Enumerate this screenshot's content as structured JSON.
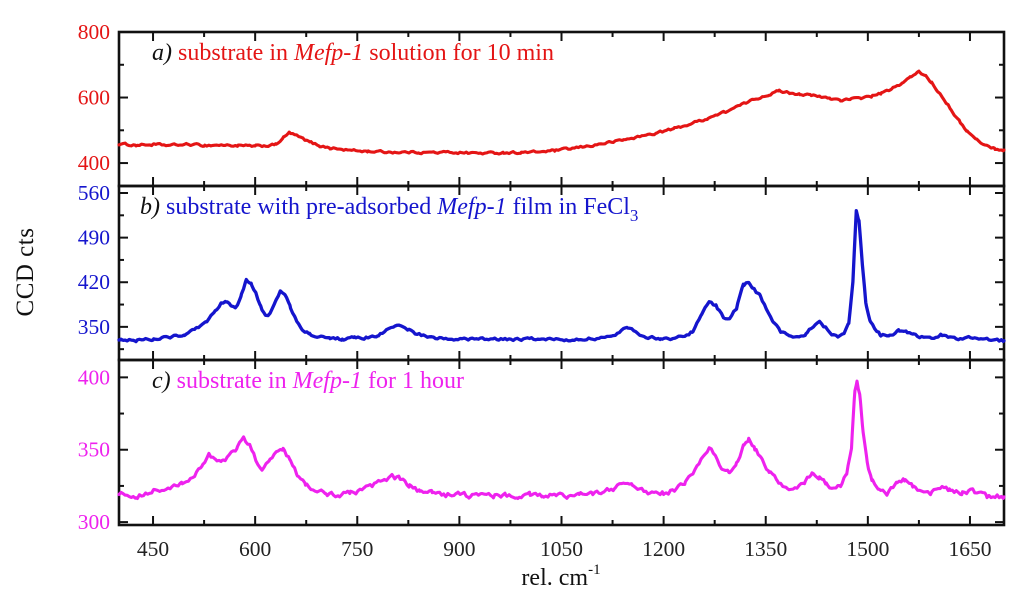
{
  "figure": {
    "ylabel": "CCD cts",
    "xlabel_main": "rel. cm",
    "xlabel_sup": "-1",
    "background_color": "#ffffff",
    "axis_color": "#111111"
  },
  "chart_data": {
    "type": "line",
    "layout": "three stacked panels sharing one x-axis, box frames with inward ticks, no grid, no legend",
    "xlabel": "rel. cm^-1",
    "ylabel": "CCD cts",
    "x_axis": {
      "range": [
        400,
        1700
      ],
      "major_ticks": [
        450,
        600,
        750,
        900,
        1050,
        1200,
        1350,
        1500,
        1650
      ],
      "minor_ticks": [
        525,
        675,
        825,
        975,
        1125,
        1275,
        1425,
        1575
      ],
      "tick_label_color": "#222222"
    },
    "panels": [
      {
        "id": "a",
        "title_text": "a) substrate in Mefp-1 solution for 10 min",
        "title_parts": [
          {
            "text": "a) ",
            "italic": true,
            "color": "#111111"
          },
          {
            "text": "substrate in ",
            "italic": false,
            "color": "#e41515"
          },
          {
            "text": "Mefp-1",
            "italic": true,
            "color": "#e41515"
          },
          {
            "text": " solution for 10 min",
            "italic": false,
            "color": "#e41515"
          }
        ],
        "color": "#e41515",
        "y_range": [
          330,
          800
        ],
        "y_major_ticks": [
          400,
          600,
          800
        ],
        "y_minor_ticks": [
          500,
          700
        ],
        "noise_amp": 3.4,
        "stroke_width": 3.1,
        "points": [
          [
            400,
            458
          ],
          [
            425,
            455
          ],
          [
            450,
            456
          ],
          [
            475,
            454
          ],
          [
            500,
            457
          ],
          [
            525,
            454
          ],
          [
            550,
            455
          ],
          [
            575,
            453
          ],
          [
            600,
            451
          ],
          [
            615,
            453
          ],
          [
            630,
            456
          ],
          [
            642,
            478
          ],
          [
            650,
            492
          ],
          [
            658,
            486
          ],
          [
            668,
            476
          ],
          [
            680,
            464
          ],
          [
            695,
            453
          ],
          [
            710,
            446
          ],
          [
            725,
            442
          ],
          [
            745,
            438
          ],
          [
            765,
            436
          ],
          [
            790,
            434
          ],
          [
            815,
            433
          ],
          [
            840,
            433
          ],
          [
            865,
            432
          ],
          [
            890,
            433
          ],
          [
            915,
            431
          ],
          [
            940,
            430
          ],
          [
            965,
            432
          ],
          [
            990,
            432
          ],
          [
            1015,
            434
          ],
          [
            1040,
            438
          ],
          [
            1065,
            444
          ],
          [
            1090,
            452
          ],
          [
            1115,
            461
          ],
          [
            1140,
            470
          ],
          [
            1165,
            481
          ],
          [
            1190,
            492
          ],
          [
            1215,
            505
          ],
          [
            1240,
            520
          ],
          [
            1265,
            537
          ],
          [
            1290,
            556
          ],
          [
            1315,
            578
          ],
          [
            1335,
            596
          ],
          [
            1355,
            610
          ],
          [
            1370,
            620
          ],
          [
            1385,
            615
          ],
          [
            1400,
            611
          ],
          [
            1415,
            607
          ],
          [
            1430,
            602
          ],
          [
            1445,
            597
          ],
          [
            1460,
            593
          ],
          [
            1475,
            594
          ],
          [
            1490,
            599
          ],
          [
            1505,
            604
          ],
          [
            1520,
            613
          ],
          [
            1535,
            625
          ],
          [
            1550,
            644
          ],
          [
            1562,
            661
          ],
          [
            1575,
            678
          ],
          [
            1584,
            668
          ],
          [
            1593,
            648
          ],
          [
            1602,
            622
          ],
          [
            1612,
            596
          ],
          [
            1622,
            565
          ],
          [
            1634,
            528
          ],
          [
            1646,
            498
          ],
          [
            1658,
            473
          ],
          [
            1672,
            455
          ],
          [
            1686,
            444
          ],
          [
            1700,
            440
          ]
        ]
      },
      {
        "id": "b",
        "title_text": "b) substrate with pre-adsorbed Mefp-1 film in FeCl3",
        "title_parts": [
          {
            "text": "b) ",
            "italic": true,
            "color": "#111111"
          },
          {
            "text": "substrate with pre-adsorbed ",
            "italic": false,
            "color": "#1515cd"
          },
          {
            "text": "Mefp-1",
            "italic": true,
            "color": "#1515cd"
          },
          {
            "text": " film in FeCl",
            "italic": false,
            "color": "#1515cd"
          },
          {
            "text": "3",
            "italic": false,
            "color": "#1515cd",
            "sub": true
          }
        ],
        "color": "#1515cd",
        "y_range": [
          298,
          571
        ],
        "y_major_ticks": [
          350,
          420,
          490,
          560
        ],
        "y_minor_ticks": [
          315,
          385,
          455,
          525
        ],
        "noise_amp": 2.2,
        "stroke_width": 3.3,
        "points": [
          [
            400,
            331
          ],
          [
            425,
            329
          ],
          [
            450,
            331
          ],
          [
            475,
            334
          ],
          [
            495,
            338
          ],
          [
            512,
            345
          ],
          [
            527,
            356
          ],
          [
            540,
            372
          ],
          [
            550,
            386
          ],
          [
            557,
            391
          ],
          [
            564,
            385
          ],
          [
            571,
            381
          ],
          [
            579,
            396
          ],
          [
            587,
            424
          ],
          [
            594,
            417
          ],
          [
            601,
            403
          ],
          [
            608,
            381
          ],
          [
            615,
            366
          ],
          [
            622,
            371
          ],
          [
            630,
            391
          ],
          [
            637,
            406
          ],
          [
            644,
            399
          ],
          [
            651,
            383
          ],
          [
            659,
            363
          ],
          [
            669,
            347
          ],
          [
            680,
            339
          ],
          [
            694,
            334
          ],
          [
            710,
            332
          ],
          [
            728,
            331
          ],
          [
            746,
            332
          ],
          [
            764,
            333
          ],
          [
            780,
            336
          ],
          [
            792,
            343
          ],
          [
            803,
            351
          ],
          [
            814,
            352
          ],
          [
            824,
            347
          ],
          [
            835,
            340
          ],
          [
            850,
            335
          ],
          [
            868,
            332
          ],
          [
            886,
            331
          ],
          [
            904,
            332
          ],
          [
            922,
            330
          ],
          [
            940,
            331
          ],
          [
            958,
            330
          ],
          [
            976,
            331
          ],
          [
            994,
            330
          ],
          [
            1012,
            331
          ],
          [
            1030,
            330
          ],
          [
            1048,
            331
          ],
          [
            1066,
            330
          ],
          [
            1084,
            332
          ],
          [
            1102,
            331
          ],
          [
            1120,
            333
          ],
          [
            1135,
            341
          ],
          [
            1146,
            351
          ],
          [
            1156,
            346
          ],
          [
            1167,
            337
          ],
          [
            1180,
            333
          ],
          [
            1196,
            332
          ],
          [
            1212,
            332
          ],
          [
            1228,
            334
          ],
          [
            1242,
            342
          ],
          [
            1256,
            369
          ],
          [
            1267,
            391
          ],
          [
            1277,
            383
          ],
          [
            1287,
            366
          ],
          [
            1297,
            362
          ],
          [
            1307,
            379
          ],
          [
            1317,
            415
          ],
          [
            1325,
            421
          ],
          [
            1333,
            409
          ],
          [
            1341,
            399
          ],
          [
            1351,
            379
          ],
          [
            1361,
            357
          ],
          [
            1371,
            343
          ],
          [
            1383,
            336
          ],
          [
            1396,
            334
          ],
          [
            1409,
            338
          ],
          [
            1420,
            351
          ],
          [
            1429,
            357
          ],
          [
            1438,
            349
          ],
          [
            1447,
            339
          ],
          [
            1456,
            336
          ],
          [
            1465,
            341
          ],
          [
            1472,
            355
          ],
          [
            1478,
            420
          ],
          [
            1483,
            530
          ],
          [
            1487,
            516
          ],
          [
            1492,
            448
          ],
          [
            1497,
            389
          ],
          [
            1503,
            360
          ],
          [
            1510,
            346
          ],
          [
            1518,
            338
          ],
          [
            1532,
            336
          ],
          [
            1545,
            344
          ],
          [
            1556,
            343
          ],
          [
            1566,
            338
          ],
          [
            1579,
            334
          ],
          [
            1593,
            332
          ],
          [
            1607,
            337
          ],
          [
            1618,
            334
          ],
          [
            1636,
            331
          ],
          [
            1654,
            334
          ],
          [
            1672,
            330
          ],
          [
            1686,
            330
          ],
          [
            1700,
            328
          ]
        ]
      },
      {
        "id": "c",
        "title_text": "c) substrate in Mefp-1 for 1 hour",
        "title_parts": [
          {
            "text": "c) ",
            "italic": true,
            "color": "#111111"
          },
          {
            "text": "substrate in ",
            "italic": false,
            "color": "#ee22ee"
          },
          {
            "text": "Mefp-1",
            "italic": true,
            "color": "#ee22ee"
          },
          {
            "text": " for 1 hour",
            "italic": false,
            "color": "#ee22ee"
          }
        ],
        "color": "#ee22ee",
        "y_range": [
          298,
          412
        ],
        "y_major_ticks": [
          300,
          350,
          400
        ],
        "y_minor_ticks": [
          325,
          375
        ],
        "noise_amp": 1.6,
        "stroke_width": 3.1,
        "points": [
          [
            400,
            320
          ],
          [
            425,
            318
          ],
          [
            450,
            321
          ],
          [
            472,
            323
          ],
          [
            492,
            326
          ],
          [
            508,
            330
          ],
          [
            522,
            340
          ],
          [
            532,
            347
          ],
          [
            541,
            344
          ],
          [
            551,
            341
          ],
          [
            562,
            345
          ],
          [
            573,
            351
          ],
          [
            583,
            357
          ],
          [
            592,
            353
          ],
          [
            601,
            343
          ],
          [
            610,
            337
          ],
          [
            620,
            341
          ],
          [
            631,
            348
          ],
          [
            641,
            351
          ],
          [
            651,
            343
          ],
          [
            662,
            333
          ],
          [
            674,
            327
          ],
          [
            688,
            322
          ],
          [
            704,
            320
          ],
          [
            722,
            319
          ],
          [
            740,
            320
          ],
          [
            757,
            322
          ],
          [
            772,
            325
          ],
          [
            787,
            329
          ],
          [
            801,
            331
          ],
          [
            813,
            330
          ],
          [
            827,
            325
          ],
          [
            842,
            321
          ],
          [
            860,
            320
          ],
          [
            878,
            319
          ],
          [
            896,
            320
          ],
          [
            914,
            318
          ],
          [
            932,
            319
          ],
          [
            950,
            318
          ],
          [
            968,
            319
          ],
          [
            986,
            318
          ],
          [
            1004,
            319
          ],
          [
            1022,
            318
          ],
          [
            1040,
            319
          ],
          [
            1058,
            318
          ],
          [
            1076,
            319
          ],
          [
            1094,
            320
          ],
          [
            1112,
            321
          ],
          [
            1128,
            323
          ],
          [
            1142,
            327
          ],
          [
            1154,
            326
          ],
          [
            1168,
            322
          ],
          [
            1184,
            320
          ],
          [
            1200,
            320
          ],
          [
            1216,
            322
          ],
          [
            1232,
            327
          ],
          [
            1246,
            336
          ],
          [
            1258,
            347
          ],
          [
            1267,
            351
          ],
          [
            1276,
            345
          ],
          [
            1286,
            336
          ],
          [
            1296,
            334
          ],
          [
            1307,
            341
          ],
          [
            1317,
            352
          ],
          [
            1325,
            357
          ],
          [
            1334,
            351
          ],
          [
            1344,
            343
          ],
          [
            1355,
            335
          ],
          [
            1367,
            328
          ],
          [
            1380,
            324
          ],
          [
            1394,
            323
          ],
          [
            1407,
            328
          ],
          [
            1418,
            333
          ],
          [
            1428,
            331
          ],
          [
            1439,
            326
          ],
          [
            1450,
            323
          ],
          [
            1460,
            326
          ],
          [
            1469,
            333
          ],
          [
            1476,
            352
          ],
          [
            1481,
            392
          ],
          [
            1484,
            398
          ],
          [
            1488,
            389
          ],
          [
            1493,
            362
          ],
          [
            1499,
            340
          ],
          [
            1506,
            329
          ],
          [
            1515,
            323
          ],
          [
            1528,
            320
          ],
          [
            1542,
            326
          ],
          [
            1554,
            329
          ],
          [
            1566,
            325
          ],
          [
            1579,
            321
          ],
          [
            1592,
            320
          ],
          [
            1606,
            324
          ],
          [
            1620,
            322
          ],
          [
            1638,
            320
          ],
          [
            1656,
            322
          ],
          [
            1674,
            318
          ],
          [
            1688,
            318
          ],
          [
            1700,
            317
          ]
        ]
      }
    ]
  }
}
